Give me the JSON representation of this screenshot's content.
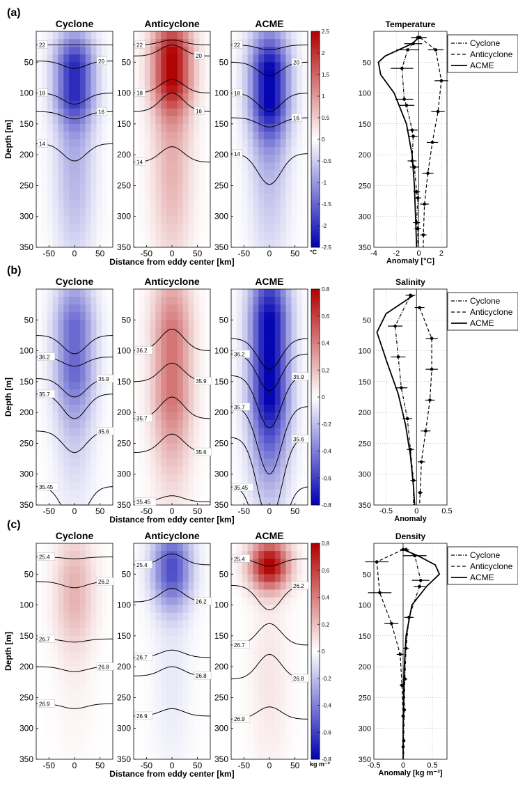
{
  "figure": {
    "shared_ylabel": "Depth [m]",
    "shared_xlabel": "Distance from eddy center [km]",
    "panel_titles": [
      "Cyclone",
      "Anticyclone",
      "ACME"
    ],
    "depth_ticks": [
      50,
      100,
      150,
      200,
      250,
      300,
      350
    ],
    "x_ticks": [
      -50,
      0,
      50
    ],
    "legend": [
      "Cyclone",
      "Anticyclone",
      "ACME"
    ]
  },
  "rows": [
    {
      "label": "(a)",
      "unit_label": "°C",
      "colorbar": {
        "min": -2.5,
        "max": 2.5,
        "ticks": [
          2.5,
          2,
          1.5,
          1,
          0.5,
          0,
          -0.5,
          -1,
          -1.5,
          -2,
          -2.5
        ]
      },
      "panels": [
        {
          "sign": -1,
          "peak": 0.85,
          "center": 75,
          "spread_z": 70,
          "deep": 0.35,
          "contours": [
            {
              "label": "22",
              "depth": 22,
              "dip": 0,
              "labelSide": "left"
            },
            {
              "label": "20",
              "depth": 48,
              "dip": -12,
              "labelSide": "right"
            },
            {
              "label": "18",
              "depth": 100,
              "dip": -18,
              "labelSide": "left"
            },
            {
              "label": "16",
              "depth": 130,
              "dip": -12,
              "labelSide": "right"
            },
            {
              "label": "14",
              "depth": 182,
              "dip": -28,
              "labelSide": "left"
            }
          ]
        },
        {
          "sign": 1,
          "peak": 1.0,
          "center": 55,
          "spread_z": 75,
          "deep": 0.3,
          "contours": [
            {
              "label": "22",
              "depth": 22,
              "dip": 8,
              "labelSide": "left"
            },
            {
              "label": "20",
              "depth": 40,
              "dip": 18,
              "labelSide": "right"
            },
            {
              "label": "18",
              "depth": 100,
              "dip": 22,
              "labelSide": "left"
            },
            {
              "label": "16",
              "depth": 130,
              "dip": 30,
              "labelSide": "right"
            },
            {
              "label": "14",
              "depth": 212,
              "dip": 25,
              "labelSide": "left"
            }
          ]
        },
        {
          "sign": -1,
          "peak": 1.0,
          "center": 85,
          "spread_z": 85,
          "deep": 0.25,
          "contours": [
            {
              "label": "22",
              "depth": 22,
              "dip": -8,
              "labelSide": "left"
            },
            {
              "label": "20",
              "depth": 50,
              "dip": -22,
              "labelSide": "right"
            },
            {
              "label": "18",
              "depth": 100,
              "dip": -30,
              "labelSide": "left"
            },
            {
              "label": "16",
              "depth": 140,
              "dip": -15,
              "labelSide": "right"
            },
            {
              "label": "14",
              "depth": 198,
              "dip": -50,
              "labelSide": "left"
            }
          ]
        }
      ]
    },
    {
      "label": "(b)",
      "unit_label": "",
      "colorbar": {
        "min": -0.8,
        "max": 0.8,
        "ticks": [
          0.8,
          0.6,
          0.4,
          0.2,
          0,
          -0.2,
          -0.4,
          -0.6,
          -0.8
        ]
      },
      "panels": [
        {
          "sign": -1,
          "peak": 0.6,
          "center": 90,
          "spread_z": 110,
          "deep": 0.25,
          "contours": [
            {
              "label": "",
              "depth": 75,
              "dip": -30,
              "labelSide": "left"
            },
            {
              "label": "36.2",
              "depth": 110,
              "dip": -15,
              "labelSide": "left"
            },
            {
              "label": "35.9",
              "depth": 145,
              "dip": -30,
              "labelSide": "right"
            },
            {
              "label": "35.7",
              "depth": 170,
              "dip": -40,
              "labelSide": "left"
            },
            {
              "label": "35.6",
              "depth": 230,
              "dip": -35,
              "labelSide": "right"
            },
            {
              "label": "35.45",
              "depth": 320,
              "dip": -60,
              "labelSide": "left"
            }
          ]
        },
        {
          "sign": 1,
          "peak": 0.55,
          "center": 110,
          "spread_z": 140,
          "deep": 0.25,
          "contours": [
            {
              "label": "36.2",
              "depth": 100,
              "dip": 35,
              "labelSide": "left"
            },
            {
              "label": "35.9",
              "depth": 150,
              "dip": 30,
              "labelSide": "right"
            },
            {
              "label": "35.7",
              "depth": 210,
              "dip": 35,
              "labelSide": "left"
            },
            {
              "label": "35.6",
              "depth": 265,
              "dip": 30,
              "labelSide": "right"
            },
            {
              "label": "35.45",
              "depth": 345,
              "dip": 10,
              "labelSide": "left"
            }
          ]
        },
        {
          "sign": -1,
          "peak": 1.0,
          "center": 95,
          "spread_z": 150,
          "deep": 0.3,
          "contours": [
            {
              "label": "",
              "depth": 80,
              "dip": -50,
              "labelSide": "left"
            },
            {
              "label": "36.2",
              "depth": 105,
              "dip": -60,
              "labelSide": "left"
            },
            {
              "label": "35.9",
              "depth": 140,
              "dip": -85,
              "labelSide": "right"
            },
            {
              "label": "35.7",
              "depth": 190,
              "dip": -110,
              "labelSide": "left"
            },
            {
              "label": "35.6",
              "depth": 240,
              "dip": -140,
              "labelSide": "right"
            },
            {
              "label": "35.45",
              "depth": 320,
              "dip": -160,
              "labelSide": "left"
            }
          ]
        }
      ]
    },
    {
      "label": "(c)",
      "unit_label": "kg m⁻³",
      "colorbar": {
        "min": -0.8,
        "max": 0.8,
        "ticks": [
          0.8,
          0.6,
          0.4,
          0.2,
          0,
          -0.2,
          -0.4,
          -0.6,
          -0.8
        ]
      },
      "panels": [
        {
          "sign": 1,
          "peak": 0.3,
          "center": 75,
          "spread_z": 90,
          "deep": 0.15,
          "contours": [
            {
              "label": "25.4",
              "depth": 22,
              "dip": -3,
              "labelSide": "left"
            },
            {
              "label": "26.2",
              "depth": 62,
              "dip": -10,
              "labelSide": "right"
            },
            {
              "label": "26.7",
              "depth": 155,
              "dip": -5,
              "labelSide": "left"
            },
            {
              "label": "26.8",
              "depth": 200,
              "dip": -8,
              "labelSide": "right"
            },
            {
              "label": "26.9",
              "depth": 260,
              "dip": -8,
              "labelSide": "left"
            }
          ]
        },
        {
          "sign": -1,
          "peak": 0.7,
          "center": 40,
          "spread_z": 65,
          "deep": 0.12,
          "contours": [
            {
              "label": "25.4",
              "depth": 35,
              "dip": 18,
              "labelSide": "left"
            },
            {
              "label": "26.2",
              "depth": 95,
              "dip": 22,
              "labelSide": "right"
            },
            {
              "label": "26.7",
              "depth": 185,
              "dip": 12,
              "labelSide": "left"
            },
            {
              "label": "26.8",
              "depth": 215,
              "dip": 15,
              "labelSide": "right"
            },
            {
              "label": "26.9",
              "depth": 280,
              "dip": 12,
              "labelSide": "left"
            }
          ]
        },
        {
          "sign": 1,
          "peak": 1.0,
          "center": 35,
          "spread_z": 40,
          "deep": 0.1,
          "contours": [
            {
              "label": "25.4",
              "depth": 25,
              "dip": -12,
              "labelSide": "left"
            },
            {
              "label": "26.2",
              "depth": 68,
              "dip": -40,
              "labelSide": "right"
            },
            {
              "label": "26.7",
              "depth": 165,
              "dip": 35,
              "labelSide": "left"
            },
            {
              "label": "26.8",
              "depth": 220,
              "dip": 40,
              "labelSide": "right"
            },
            {
              "label": "26.9",
              "depth": 285,
              "dip": 20,
              "labelSide": "left"
            }
          ]
        }
      ]
    }
  ],
  "chart_data": [
    {
      "type": "line",
      "title": "Temperature",
      "xlabel": "Anomaly [°C]",
      "ylabel": "",
      "xlim": [
        -4,
        2.5
      ],
      "ylim": [
        0,
        350
      ],
      "x_ticks": [
        -4,
        -2,
        0,
        2
      ],
      "y_ticks": [
        50,
        100,
        150,
        200,
        250,
        300,
        350
      ],
      "grid": true,
      "legend_position": "right",
      "series": [
        {
          "name": "Cyclone",
          "style": "dashdot",
          "depth": [
            10,
            20,
            30,
            60,
            110,
            120,
            160,
            170,
            210,
            220,
            260,
            270,
            310,
            320,
            350
          ],
          "values": [
            -0.1,
            -0.5,
            -1.0,
            -1.5,
            -1.3,
            -1.1,
            -0.6,
            -0.5,
            -0.6,
            -0.4,
            -0.2,
            -0.1,
            -0.2,
            -0.1,
            -0.1
          ],
          "xerr": [
            0.6,
            0.8,
            1.0,
            1.0,
            0.8,
            0.7,
            0.5,
            0.4,
            0.4,
            0.4,
            0.3,
            0.3,
            0.3,
            0.3,
            0
          ]
        },
        {
          "name": "Anticyclone",
          "style": "dashed",
          "depth": [
            10,
            30,
            80,
            130,
            180,
            230,
            280,
            330,
            350
          ],
          "values": [
            0.1,
            1.5,
            2.0,
            1.7,
            1.2,
            0.8,
            0.5,
            0.4,
            0.4
          ],
          "xerr": [
            0.6,
            0.7,
            0.6,
            0.6,
            0.5,
            0.5,
            0.4,
            0.3,
            0
          ]
        },
        {
          "name": "ACME",
          "style": "solid",
          "depth": [
            10,
            20,
            40,
            50,
            70,
            100,
            150,
            200,
            250,
            300,
            350
          ],
          "values": [
            0.0,
            -0.6,
            -3.0,
            -3.6,
            -3.4,
            -2.2,
            -1.1,
            -0.6,
            -0.4,
            -0.3,
            -0.2
          ],
          "xerr": [
            0,
            0,
            0,
            0,
            0,
            0,
            0,
            0,
            0,
            0,
            0
          ]
        }
      ]
    },
    {
      "type": "line",
      "title": "Salinity",
      "xlabel": "Anomaly",
      "ylabel": "",
      "xlim": [
        -0.7,
        0.5
      ],
      "ylim": [
        0,
        350
      ],
      "x_ticks": [
        -0.5,
        0,
        0.5
      ],
      "y_ticks": [
        50,
        100,
        150,
        200,
        250,
        300,
        350
      ],
      "grid": true,
      "legend_position": "right",
      "series": [
        {
          "name": "Cyclone",
          "style": "dashdot",
          "depth": [
            10,
            60,
            110,
            160,
            210,
            260,
            310,
            350
          ],
          "values": [
            -0.1,
            -0.35,
            -0.3,
            -0.25,
            -0.15,
            -0.1,
            -0.05,
            -0.05
          ],
          "xerr": [
            0.08,
            0.12,
            0.12,
            0.1,
            0.08,
            0.06,
            0.05,
            0
          ]
        },
        {
          "name": "Anticyclone",
          "style": "dashed",
          "depth": [
            30,
            80,
            130,
            180,
            230,
            280,
            330,
            350
          ],
          "values": [
            0.05,
            0.25,
            0.25,
            0.22,
            0.15,
            0.08,
            0.06,
            0.05
          ],
          "xerr": [
            0.08,
            0.1,
            0.1,
            0.08,
            0.08,
            0.06,
            0.04,
            0
          ]
        },
        {
          "name": "ACME",
          "style": "solid",
          "depth": [
            10,
            20,
            40,
            70,
            120,
            170,
            220,
            270,
            320,
            350
          ],
          "values": [
            -0.05,
            -0.2,
            -0.5,
            -0.65,
            -0.48,
            -0.3,
            -0.18,
            -0.1,
            -0.05,
            -0.03
          ],
          "xerr": [
            0,
            0,
            0,
            0,
            0,
            0,
            0,
            0,
            0,
            0
          ]
        }
      ]
    },
    {
      "type": "line",
      "title": "Density",
      "xlabel": "Anomaly [kg m⁻³]",
      "ylabel": "",
      "xlim": [
        -0.5,
        0.75
      ],
      "ylim": [
        0,
        350
      ],
      "x_ticks": [
        -0.5,
        0,
        0.5
      ],
      "y_ticks": [
        50,
        100,
        150,
        200,
        250,
        300,
        350
      ],
      "grid": true,
      "legend_position": "right",
      "series": [
        {
          "name": "Cyclone",
          "style": "dashdot",
          "depth": [
            10,
            20,
            60,
            70,
            120,
            170,
            220,
            270,
            320,
            350
          ],
          "values": [
            0.05,
            0.2,
            0.3,
            0.28,
            0.1,
            0.05,
            0.03,
            0.02,
            0.01,
            0.01
          ],
          "xerr": [
            0.05,
            0.2,
            0.15,
            0.1,
            0.08,
            0.05,
            0.04,
            0.03,
            0.03,
            0
          ]
        },
        {
          "name": "Anticyclone",
          "style": "dashed",
          "depth": [
            10,
            30,
            80,
            130,
            180,
            230,
            280,
            330,
            350
          ],
          "values": [
            0.0,
            -0.45,
            -0.4,
            -0.2,
            -0.05,
            -0.02,
            0.0,
            0.0,
            0.0
          ],
          "xerr": [
            0.05,
            0.2,
            0.2,
            0.12,
            0.06,
            0.04,
            0.03,
            0.02,
            0
          ]
        },
        {
          "name": "ACME",
          "style": "solid",
          "depth": [
            10,
            20,
            35,
            50,
            70,
            100,
            150,
            200,
            250,
            300,
            350
          ],
          "values": [
            0.0,
            0.25,
            0.55,
            0.62,
            0.4,
            0.15,
            0.05,
            0.02,
            0.01,
            0.0,
            0.0
          ],
          "xerr": [
            0,
            0,
            0,
            0,
            0,
            0,
            0,
            0,
            0,
            0,
            0
          ]
        }
      ]
    }
  ]
}
